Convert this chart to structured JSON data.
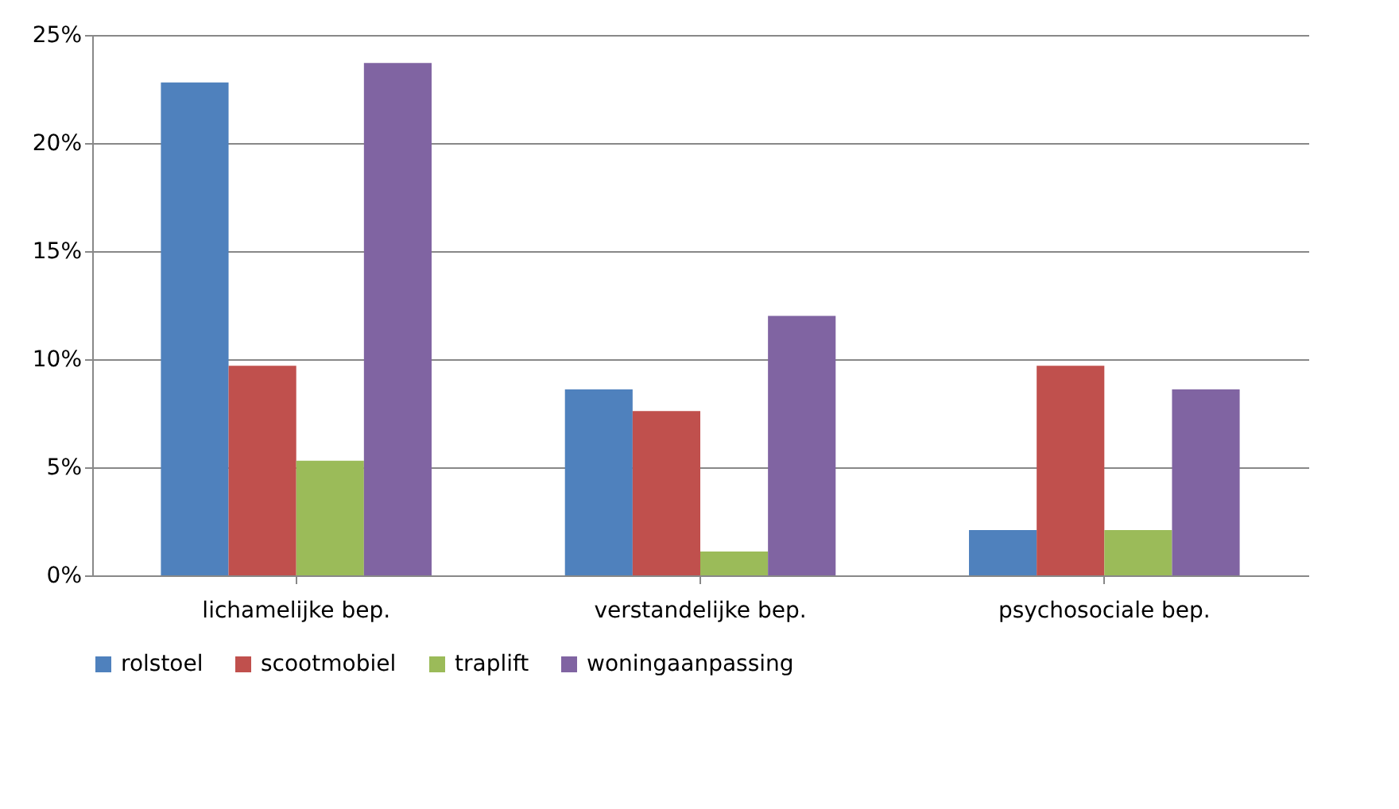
{
  "chart_data": {
    "type": "bar",
    "categories": [
      "lichamelijke bep.",
      "verstandelijke bep.",
      "psychosociale bep."
    ],
    "series": [
      {
        "name": "rolstoel",
        "color": "#4f81bd",
        "values": [
          22.8,
          8.6,
          2.1
        ]
      },
      {
        "name": "scootmobiel",
        "color": "#c0504d",
        "values": [
          9.7,
          7.6,
          9.7
        ]
      },
      {
        "name": "traplift",
        "color": "#9bbb59",
        "values": [
          5.3,
          1.1,
          2.1
        ]
      },
      {
        "name": "woningaanpassing",
        "color": "#8064a2",
        "values": [
          23.7,
          12.0,
          8.6
        ]
      }
    ],
    "ylim": [
      0,
      25
    ],
    "yticks": [
      {
        "value": 0,
        "label": "0%"
      },
      {
        "value": 5,
        "label": "5%"
      },
      {
        "value": 10,
        "label": "10%"
      },
      {
        "value": 15,
        "label": "15%"
      },
      {
        "value": 20,
        "label": "20%"
      },
      {
        "value": 25,
        "label": "25%"
      }
    ],
    "grid": "y",
    "legend": "bottom"
  }
}
